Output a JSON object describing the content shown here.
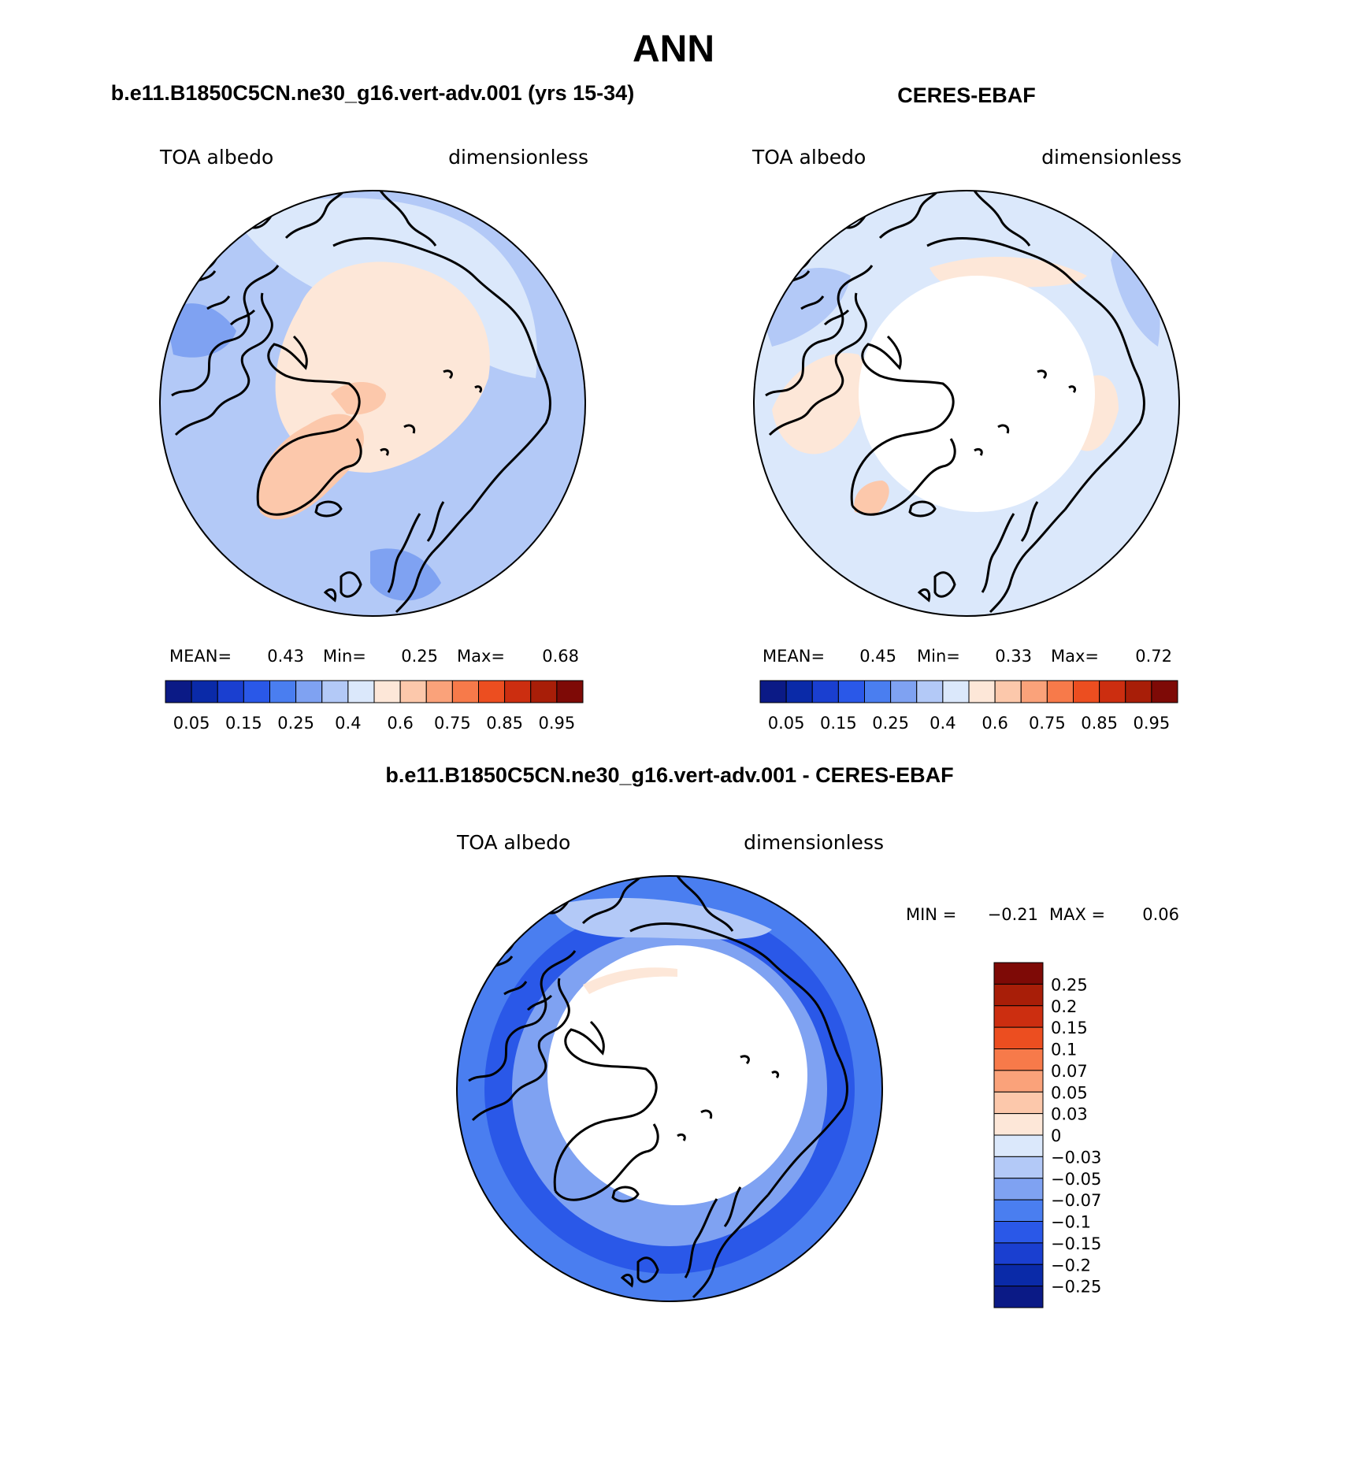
{
  "figure": {
    "title": "ANN"
  },
  "panels": [
    {
      "heading": "b.e11.B1850C5CN.ne30_g16.vert-adv.001 (yrs 15-34)",
      "variable": "TOA albedo",
      "units": "dimensionless",
      "stats": {
        "mean_label": "MEAN=",
        "mean": "0.43",
        "min_label": "Min=",
        "min": "0.25",
        "max_label": "Max=",
        "max": "0.68"
      }
    },
    {
      "heading": "CERES-EBAF",
      "variable": "TOA albedo",
      "units": "dimensionless",
      "stats": {
        "mean_label": "MEAN=",
        "mean": "0.45",
        "min_label": "Min=",
        "min": "0.33",
        "max_label": "Max=",
        "max": "0.72"
      }
    },
    {
      "heading": "b.e11.B1850C5CN.ne30_g16.vert-adv.001 - CERES-EBAF",
      "variable": "TOA albedo",
      "units": "dimensionless",
      "stats": {
        "min_label": "MIN =",
        "min": "−0.21",
        "max_label": "MAX =",
        "max": "0.06"
      }
    }
  ],
  "colorbars": {
    "field": {
      "colors": [
        "#0b1a86",
        "#0a2aa8",
        "#1a3fd0",
        "#2a58e8",
        "#4a7ef0",
        "#7fa2f2",
        "#b3c9f7",
        "#dbe8fb",
        "#fde7d8",
        "#fcc8ab",
        "#faa27a",
        "#f77a4a",
        "#ec4e20",
        "#cc2e10",
        "#a81e08",
        "#7e0a06"
      ],
      "labels": [
        "0.05",
        "0.15",
        "0.25",
        "0.4",
        "0.6",
        "0.75",
        "0.85",
        "0.95"
      ]
    },
    "diff": {
      "colors": [
        "#0b1a86",
        "#0a2aa8",
        "#1a3fd0",
        "#2a58e8",
        "#4a7ef0",
        "#7fa2f2",
        "#b3c9f7",
        "#dbe8fb",
        "#fde7d8",
        "#fcc8ab",
        "#faa27a",
        "#f77a4a",
        "#ec4e20",
        "#cc2e10",
        "#a81e08",
        "#7e0a06"
      ],
      "labels": [
        "0.25",
        "0.2",
        "0.15",
        "0.1",
        "0.07",
        "0.05",
        "0.03",
        "0",
        "−0.03",
        "−0.05",
        "−0.07",
        "−0.1",
        "−0.15",
        "−0.2",
        "−0.25"
      ]
    }
  },
  "map_colors": {
    "ocean_model": "#b3c9f7",
    "ocean_obs": "#dbe8fb",
    "ocean_diff": "#4a7ef0",
    "arctic_model": "#fde7d8",
    "greenland_model": "#fcc8ab",
    "arctic_obs": "#ffffff",
    "land_obs": "#fde7d8",
    "deep_blue": "#2a58e8",
    "mid_blue": "#7fa2f2",
    "coast": "#000000"
  }
}
